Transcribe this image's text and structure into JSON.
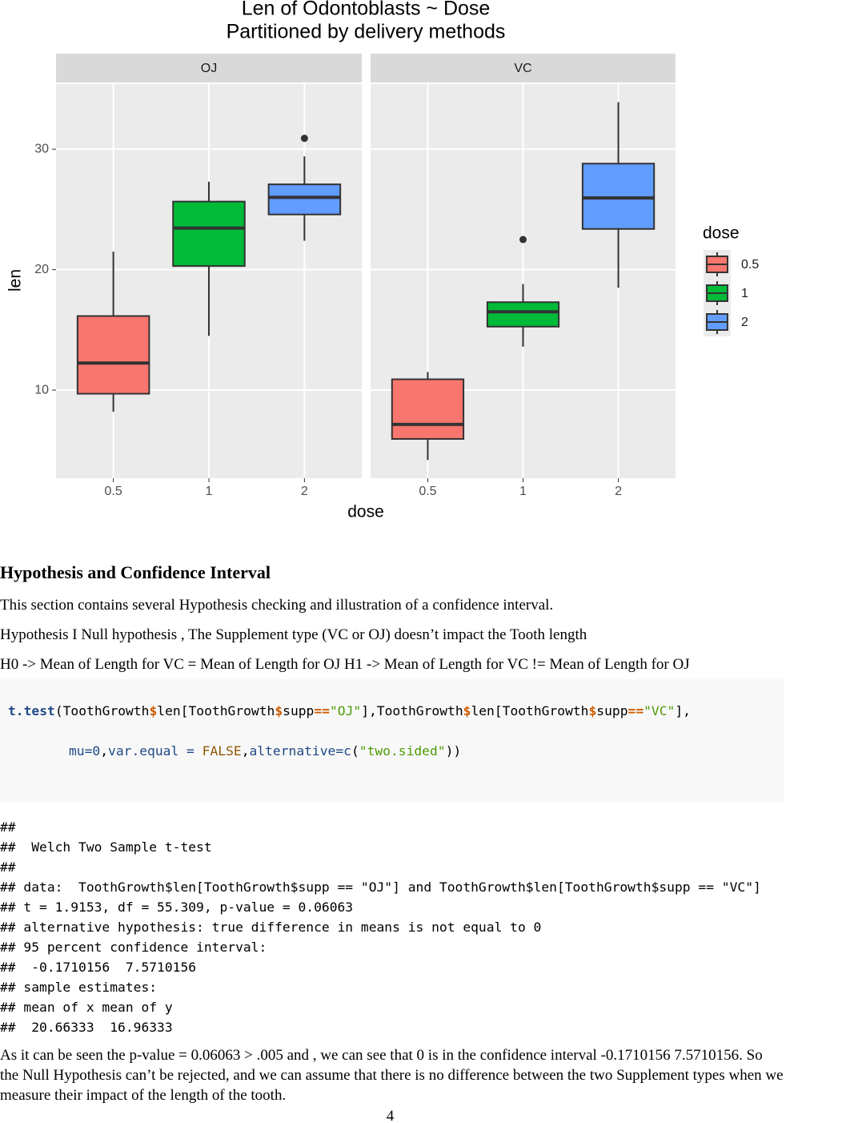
{
  "chart_data": {
    "type": "box",
    "title": "Len of Odontoblasts ~ Dose",
    "subtitle": "Partitioned by delivery methods",
    "x_label": "dose",
    "y_label": "len",
    "legend_title": "dose",
    "facets": [
      "OJ",
      "VC"
    ],
    "ylim": [
      2.69,
      35.4
    ],
    "yticks": [
      10,
      20,
      30
    ],
    "grid": true,
    "series": [
      {
        "name": "0.5",
        "color": "#F8766D",
        "min": [
          8.2,
          4.2
        ],
        "q1": [
          9.7,
          5.95
        ],
        "median": [
          12.25,
          7.15
        ],
        "q3": [
          16.15,
          10.9
        ],
        "max": [
          21.5,
          11.5
        ],
        "outliers": [
          [],
          []
        ]
      },
      {
        "name": "1",
        "color": "#00BA38",
        "min": [
          14.5,
          13.6
        ],
        "q1": [
          20.3,
          15.27
        ],
        "median": [
          23.45,
          16.5
        ],
        "q3": [
          25.65,
          17.3
        ],
        "max": [
          27.3,
          18.8
        ],
        "outliers": [
          [],
          [
            22.5
          ]
        ]
      },
      {
        "name": "2",
        "color": "#619CFF",
        "min": [
          22.4,
          18.5
        ],
        "q1": [
          24.58,
          23.38
        ],
        "median": [
          26.0,
          25.95
        ],
        "q3": [
          27.08,
          28.8
        ],
        "max": [
          29.4,
          33.9
        ],
        "outliers": [
          [
            30.9
          ],
          []
        ]
      }
    ]
  },
  "doc": {
    "heading": "Hypothesis and Confidence Interval",
    "paragraphs": [
      "This section contains several Hypothesis checking and illustration of a confidence interval.",
      "Hypothesis I Null hypothesis , The Supplement type (VC or OJ) doesn’t impact the Tooth length",
      "H0 -> Mean of Length for VC = Mean of Length for OJ H1 -> Mean of Length for VC != Mean of Length for OJ"
    ],
    "code": [
      [
        "t.test",
        "(ToothGrowth",
        "$",
        "len[ToothGrowth",
        "$",
        "supp",
        "==",
        "\"OJ\"",
        "],ToothGrowth",
        "$",
        "len[ToothGrowth",
        "$",
        "supp",
        "==",
        "\"VC\"",
        "],"
      ],
      [
        "mu=0",
        ",",
        "var.equal = ",
        "FALSE",
        ",",
        "alternative=",
        "c",
        "(",
        "\"two.sided\"",
        "))"
      ]
    ],
    "output": [
      "##",
      "##  Welch Two Sample t-test",
      "##",
      "## data:  ToothGrowth$len[ToothGrowth$supp == \"OJ\"] and ToothGrowth$len[ToothGrowth$supp == \"VC\"]",
      "## t = 1.9153, df = 55.309, p-value = 0.06063",
      "## alternative hypothesis: true difference in means is not equal to 0",
      "## 95 percent confidence interval:",
      "##  -0.1710156  7.5710156",
      "## sample estimates:",
      "## mean of x mean of y",
      "##  20.66333  16.96333"
    ],
    "conclusion": "As it can be seen the p-value = 0.06063 > .005 and , we can see that 0 is in the confidence interval -0.1710156 7.5710156. So the Null Hypothesis can’t be rejected, and we can assume that there is no difference between the two Supplement types when we measure their impact of the length of the tooth.",
    "page_number": "4"
  }
}
